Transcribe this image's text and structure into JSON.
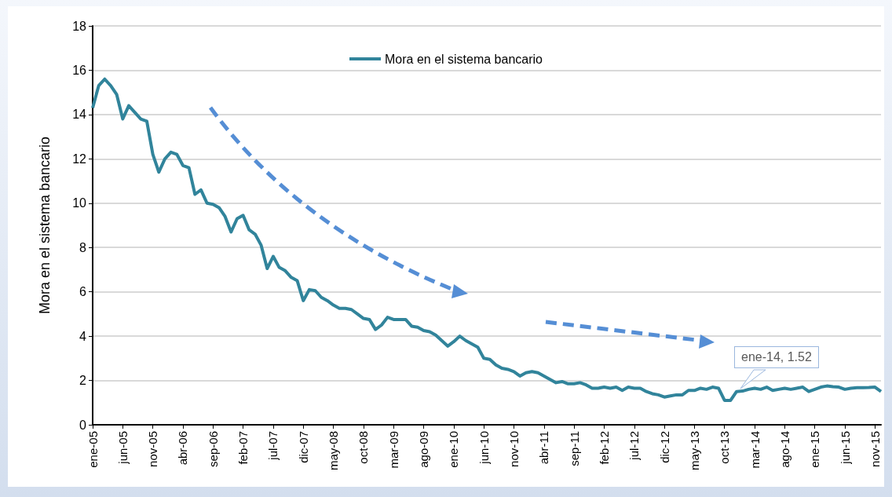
{
  "chart_data": {
    "type": "line",
    "ylabel": "Mora en el sistema bancario",
    "categories": [
      "ene-05",
      null,
      null,
      null,
      null,
      "jun-05",
      null,
      null,
      null,
      null,
      "nov-05",
      null,
      null,
      null,
      null,
      "abr-06",
      null,
      null,
      null,
      null,
      "sep-06",
      null,
      null,
      null,
      null,
      "feb-07",
      null,
      null,
      null,
      null,
      "jul-07",
      null,
      null,
      null,
      null,
      "dic-07",
      null,
      null,
      null,
      null,
      "may-08",
      null,
      null,
      null,
      null,
      "oct-08",
      null,
      null,
      null,
      null,
      "mar-09",
      null,
      null,
      null,
      null,
      "ago-09",
      null,
      null,
      null,
      null,
      "ene-10",
      null,
      null,
      null,
      null,
      "jun-10",
      null,
      null,
      null,
      null,
      "nov-10",
      null,
      null,
      null,
      null,
      "abr-11",
      null,
      null,
      null,
      null,
      "sep-11",
      null,
      null,
      null,
      null,
      "feb-12",
      null,
      null,
      null,
      null,
      "jul-12",
      null,
      null,
      null,
      null,
      "dic-12",
      null,
      null,
      null,
      null,
      "may-13",
      null,
      null,
      null,
      null,
      "oct-13",
      null,
      null,
      null,
      null,
      "mar-14",
      null,
      null,
      null,
      null,
      "ago-14",
      null,
      null,
      null,
      null,
      "ene-15",
      null,
      null,
      null,
      null,
      "jun-15",
      null,
      null,
      null,
      null,
      "nov-15",
      null
    ],
    "series": [
      {
        "name": "Mora en el sistema bancario",
        "color": "#31849b",
        "values": [
          14.3,
          15.3,
          15.6,
          15.3,
          14.9,
          13.8,
          14.4,
          14.1,
          13.8,
          13.7,
          12.2,
          11.4,
          12.0,
          12.3,
          12.2,
          11.7,
          11.6,
          10.4,
          10.6,
          10.0,
          9.95,
          9.8,
          9.4,
          8.7,
          9.3,
          9.45,
          8.8,
          8.6,
          8.1,
          7.05,
          7.6,
          7.1,
          6.95,
          6.65,
          6.5,
          5.6,
          6.1,
          6.05,
          5.75,
          5.6,
          5.4,
          5.25,
          5.25,
          5.2,
          5.0,
          4.8,
          4.75,
          4.3,
          4.5,
          4.85,
          4.75,
          4.75,
          4.75,
          4.45,
          4.4,
          4.25,
          4.2,
          4.05,
          3.8,
          3.55,
          3.75,
          4.0,
          3.8,
          3.65,
          3.5,
          3.0,
          2.95,
          2.7,
          2.55,
          2.5,
          2.4,
          2.2,
          2.35,
          2.4,
          2.35,
          2.2,
          2.05,
          1.9,
          1.95,
          1.85,
          1.85,
          1.9,
          1.8,
          1.65,
          1.65,
          1.7,
          1.65,
          1.7,
          1.55,
          1.7,
          1.65,
          1.65,
          1.5,
          1.4,
          1.35,
          1.25,
          1.3,
          1.35,
          1.35,
          1.55,
          1.55,
          1.65,
          1.6,
          1.7,
          1.65,
          1.1,
          1.1,
          1.5,
          1.52,
          1.6,
          1.65,
          1.6,
          1.7,
          1.55,
          1.6,
          1.65,
          1.6,
          1.65,
          1.7,
          1.5,
          1.6,
          1.7,
          1.75,
          1.72,
          1.7,
          1.6,
          1.65,
          1.67,
          1.67,
          1.68,
          1.7,
          1.5
        ]
      }
    ],
    "ylim": [
      0,
      18
    ],
    "yticks": [
      0,
      2,
      4,
      6,
      8,
      10,
      12,
      14,
      16,
      18
    ],
    "grid": "y",
    "legend": "top",
    "marker": "none",
    "line_style": "solid",
    "annotations": [
      "ene-14, 1.52"
    ]
  }
}
